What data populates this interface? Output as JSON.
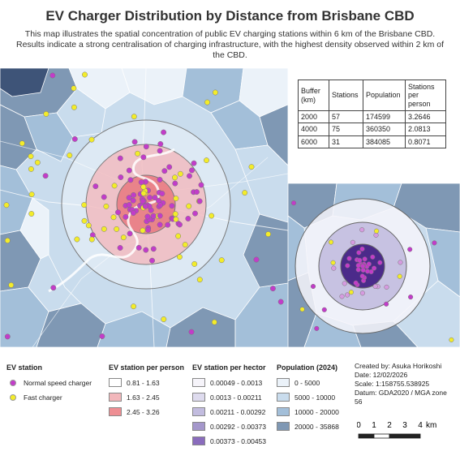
{
  "title": "EV Charger Distribution by Distance from Brisbane CBD",
  "subtitle": "This map illustrates the spatial concentration of public EV charging stations within 6 km of the Brisbane CBD. Results indicate a strong centralisation of charging infrastructure, with the highest density observed within 2 km of the CBD.",
  "table": {
    "headers": [
      "Buffer (km)",
      "Stations",
      "Population",
      "Stations per person"
    ],
    "rows": [
      [
        "2000",
        "57",
        "174599",
        "3.2646"
      ],
      [
        "4000",
        "75",
        "360350",
        "2.0813"
      ],
      [
        "6000",
        "31",
        "384085",
        "0.8071"
      ]
    ]
  },
  "legend": {
    "ev_station": {
      "title": "EV station",
      "items": [
        {
          "label": "Normal speed charger",
          "color": "#c23cc9"
        },
        {
          "label": "Fast charger",
          "color": "#f3ec2a"
        }
      ]
    },
    "per_person": {
      "title": "EV station per person",
      "items": [
        {
          "label": "0.81 - 1.63",
          "color": "#ffffff"
        },
        {
          "label": "1.63 - 2.45",
          "color": "#f2b7bb"
        },
        {
          "label": "2.45 - 3.26",
          "color": "#ee8e93"
        }
      ]
    },
    "per_hector": {
      "title": "EV station per hector",
      "items": [
        {
          "label": "0.00049 - 0.0013",
          "color": "#f6f4fa"
        },
        {
          "label": "0.0013 - 0.00211",
          "color": "#dedbee"
        },
        {
          "label": "0.00211 - 0.00292",
          "color": "#c2bcdf"
        },
        {
          "label": "0.00292 - 0.00373",
          "color": "#a497cb"
        },
        {
          "label": "0.00373 - 0.00453",
          "color": "#8a6cbd"
        }
      ]
    },
    "population": {
      "title": "Population (2024)",
      "items": [
        {
          "label": "0 - 5000",
          "color": "#ebf2f9"
        },
        {
          "label": "5000 - 10000",
          "color": "#c9dced"
        },
        {
          "label": "10000 - 20000",
          "color": "#a3bfd9"
        },
        {
          "label": "20000 - 35868",
          "color": "#7f98b4"
        }
      ]
    }
  },
  "credits": {
    "created_by": "Created by: Asuka Horikoshi",
    "date": "Date: 12/02/2026",
    "scale": "Scale: 1:158755.538925",
    "datum": "Datum: GDA2020 / MGA zone 56"
  },
  "scale_bar": {
    "ticks": [
      "0",
      "1",
      "2",
      "3",
      "4"
    ],
    "unit": "km"
  }
}
